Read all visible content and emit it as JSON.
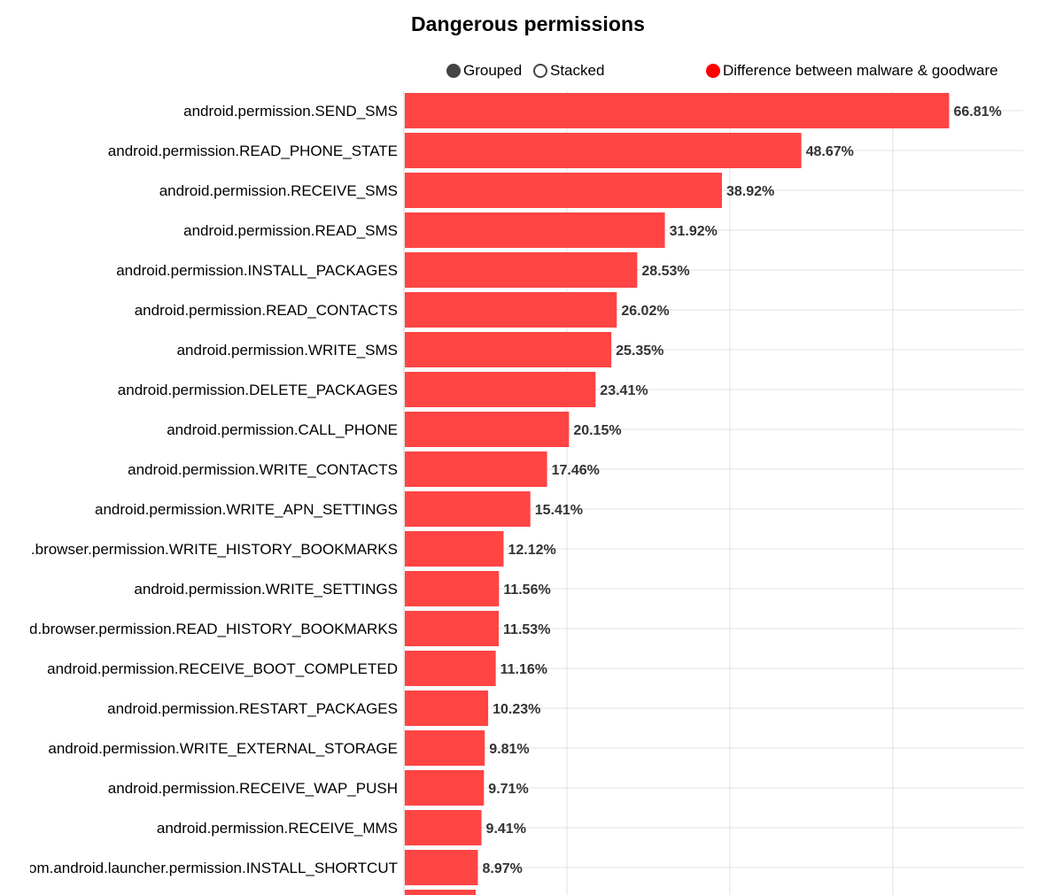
{
  "legend": {
    "grouped_label": "Grouped",
    "stacked_label": "Stacked",
    "series_label": "Difference between malware & goodware"
  },
  "colors": {
    "bar": "#ff4444",
    "series_dot": "#ff0000",
    "grid": "#e0e0e0",
    "axis": "#d0d0d0"
  },
  "chart_data": {
    "type": "bar",
    "orientation": "horizontal",
    "title": "Dangerous permissions",
    "xlabel": "",
    "ylabel": "",
    "xlim": [
      0,
      76
    ],
    "grid": true,
    "legend_position": "top",
    "categories": [
      "android.permission.SEND_SMS",
      "android.permission.READ_PHONE_STATE",
      "android.permission.RECEIVE_SMS",
      "android.permission.READ_SMS",
      "android.permission.INSTALL_PACKAGES",
      "android.permission.READ_CONTACTS",
      "android.permission.WRITE_SMS",
      "android.permission.DELETE_PACKAGES",
      "android.permission.CALL_PHONE",
      "android.permission.WRITE_CONTACTS",
      "android.permission.WRITE_APN_SETTINGS",
      "com.android.browser.permission.WRITE_HISTORY_BOOKMARKS",
      "android.permission.WRITE_SETTINGS",
      "com.android.browser.permission.READ_HISTORY_BOOKMARKS",
      "android.permission.RECEIVE_BOOT_COMPLETED",
      "android.permission.RESTART_PACKAGES",
      "android.permission.WRITE_EXTERNAL_STORAGE",
      "android.permission.RECEIVE_WAP_PUSH",
      "android.permission.RECEIVE_MMS",
      "com.android.launcher.permission.INSTALL_SHORTCUT"
    ],
    "value_labels": [
      "66.81%",
      "48.67%",
      "38.92%",
      "31.92%",
      "28.53%",
      "26.02%",
      "25.35%",
      "23.41%",
      "20.15%",
      "17.46%",
      "15.41%",
      "12.12%",
      "11.56%",
      "11.53%",
      "11.16%",
      "10.23%",
      "9.81%",
      "9.71%",
      "9.41%",
      "8.97%"
    ],
    "series": [
      {
        "name": "Difference between malware & goodware",
        "values": [
          66.81,
          48.67,
          38.92,
          31.92,
          28.53,
          26.02,
          25.35,
          23.41,
          20.15,
          17.46,
          15.41,
          12.12,
          11.56,
          11.53,
          11.16,
          10.23,
          9.81,
          9.71,
          9.41,
          8.97
        ]
      }
    ]
  }
}
